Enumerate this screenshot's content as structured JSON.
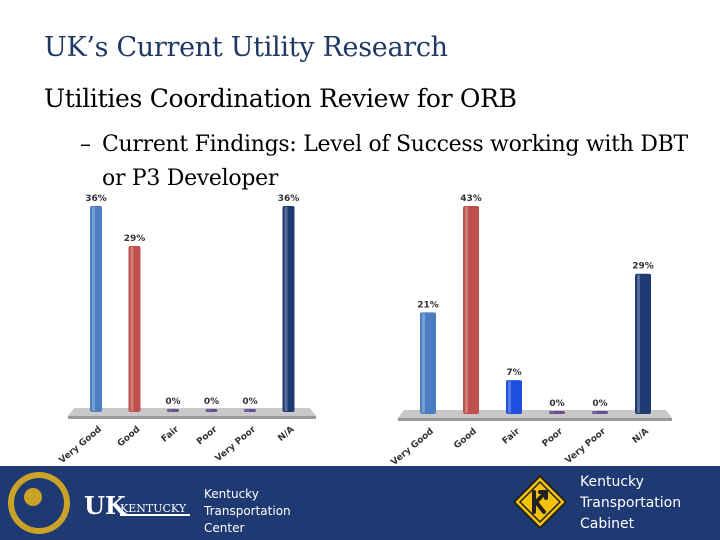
{
  "slide": {
    "title": "UK’s Current Utility Research",
    "bullet_1": "Utilities Coordination Review for ORB",
    "bullet_2_dash": "–",
    "bullet_2": "Current Findings: Level of Success working with DBT or P3 Developer"
  },
  "colors": {
    "title": "#1f3864",
    "footer": "#1f3a73",
    "bar_very_good": "#4a7ec0",
    "bar_good": "#c0504d",
    "bar_fair_right": "#1f4fe0",
    "bar_small": "#6a4c93",
    "bar_na": "#1f3a73",
    "sign": "#f4c20d"
  },
  "chart_data": [
    {
      "type": "bar",
      "categories": [
        "Very Good",
        "Good",
        "Fair",
        "Poor",
        "Very Poor",
        "N/A"
      ],
      "values": [
        36,
        29,
        0,
        0,
        0,
        36
      ],
      "value_labels": [
        "36%",
        "29%",
        "0%",
        "0%",
        "0%",
        "36%"
      ],
      "ylim": [
        0,
        36
      ],
      "grid": false,
      "legend": "none"
    },
    {
      "type": "bar",
      "categories": [
        "Very Good",
        "Good",
        "Fair",
        "Poor",
        "Very Poor",
        "N/A"
      ],
      "values": [
        21,
        43,
        7,
        0,
        0,
        29
      ],
      "value_labels": [
        "21%",
        "43%",
        "7%",
        "0%",
        "0%",
        "29%"
      ],
      "ylim": [
        0,
        43
      ],
      "grid": false,
      "legend": "none"
    }
  ],
  "footer": {
    "uk_logo": "UKKENTUCKY",
    "ktc_lines": [
      "Kentucky",
      "Transportation",
      "Center"
    ],
    "kytc_lines": [
      "Kentucky",
      "Transportation",
      "Cabinet"
    ]
  }
}
